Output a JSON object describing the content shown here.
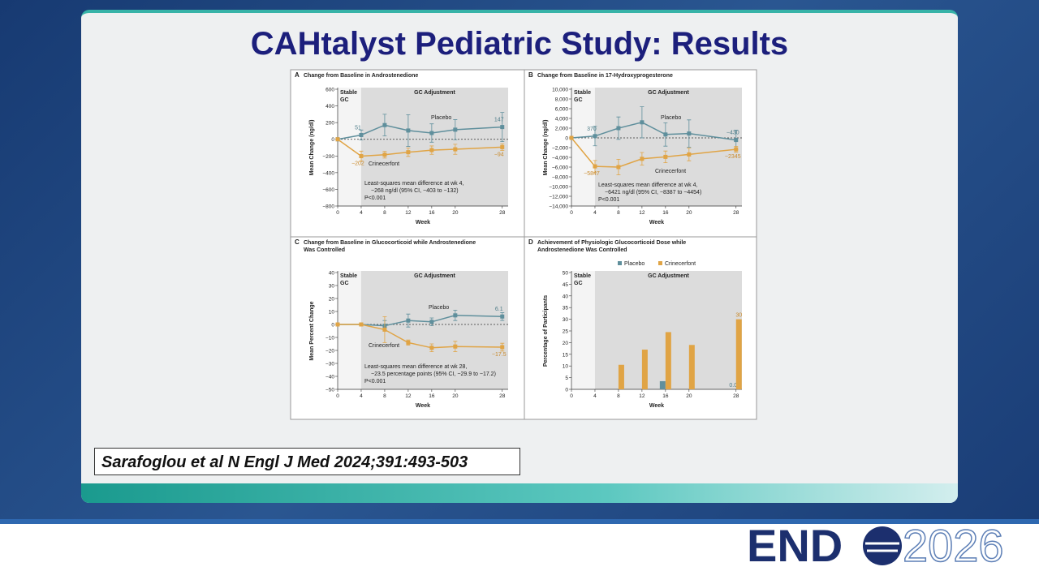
{
  "slide_title": "CAHtalyst Pediatric Study: Results",
  "citation": "Sarafoglou et al N Engl J Med 2024;391:493-503",
  "logo": {
    "left": "END",
    "right": "2026"
  },
  "chart_data": [
    {
      "type": "line",
      "panel": "A",
      "title": [
        "Change from Baseline in Androstenedione"
      ],
      "x_label": "Week",
      "y_label": "Mean Change (ng/dl)",
      "stable_label": [
        "Stable",
        "GC"
      ],
      "adjust_label": "GC Adjustment",
      "note": [
        "Least-squares mean difference at wk 4,",
        "−268 ng/dl (95% CI, −403 to −132)",
        "P<0.001"
      ],
      "x": [
        0,
        4,
        8,
        12,
        16,
        20,
        28
      ],
      "xlim": [
        0,
        29
      ],
      "xticks": [
        0,
        4,
        8,
        12,
        16,
        20,
        28
      ],
      "ylim": [
        -800,
        600
      ],
      "yticks": [
        {
          "value": -800,
          "label": "−800"
        },
        {
          "value": -600,
          "label": "−600"
        },
        {
          "value": -400,
          "label": "−400"
        },
        {
          "value": -200,
          "label": "−200"
        },
        0,
        200,
        400,
        600
      ],
      "series": [
        {
          "name": "Placebo",
          "color": "#5f8f9c",
          "values": [
            0,
            51,
            170,
            105,
            75,
            115,
            147
          ],
          "errors": [
            0,
            60,
            130,
            190,
            110,
            120,
            175
          ],
          "value_labels": [
            null,
            "51",
            null,
            null,
            null,
            null,
            "147"
          ]
        },
        {
          "name": "Crinecerfont",
          "color": "#e0a445",
          "values": [
            0,
            -202,
            -185,
            -155,
            -130,
            -120,
            -94
          ],
          "errors": [
            0,
            60,
            40,
            50,
            50,
            60,
            40
          ],
          "value_labels": [
            null,
            "−202",
            null,
            null,
            null,
            null,
            "−94"
          ]
        }
      ]
    },
    {
      "type": "line",
      "panel": "B",
      "title": [
        "Change from Baseline in 17-Hydroxyprogesterone"
      ],
      "x_label": "Week",
      "y_label": "Mean Change (ng/dl)",
      "stable_label": [
        "Stable",
        "GC"
      ],
      "adjust_label": "GC Adjustment",
      "note": [
        "Least-squares mean difference at wk 4,",
        "−6421 ng/dl (95% CI, −8387 to −4454)",
        "P<0.001"
      ],
      "x": [
        0,
        4,
        8,
        12,
        16,
        20,
        28
      ],
      "xlim": [
        0,
        29
      ],
      "xticks": [
        0,
        4,
        8,
        12,
        16,
        20,
        28
      ],
      "ylim": [
        -14000,
        10000
      ],
      "yticks": [
        {
          "value": -14000,
          "label": "−14,000"
        },
        {
          "value": -12000,
          "label": "−12,000"
        },
        {
          "value": -10000,
          "label": "−10,000"
        },
        {
          "value": -8000,
          "label": "−8,000"
        },
        {
          "value": -6000,
          "label": "−6,000"
        },
        {
          "value": -4000,
          "label": "−4,000"
        },
        {
          "value": -2000,
          "label": "−2,000"
        },
        0,
        {
          "value": 2000,
          "label": "2,000"
        },
        {
          "value": 4000,
          "label": "4,000"
        },
        {
          "value": 6000,
          "label": "6,000"
        },
        {
          "value": 8000,
          "label": "8,000"
        },
        {
          "value": 10000,
          "label": "10,000"
        }
      ],
      "series": [
        {
          "name": "Placebo",
          "color": "#5f8f9c",
          "values": [
            0,
            370,
            2000,
            3200,
            700,
            900,
            -430
          ],
          "errors": [
            0,
            2000,
            2300,
            3200,
            2400,
            2800,
            2000
          ],
          "value_labels": [
            null,
            "370",
            null,
            null,
            null,
            null,
            "−430"
          ]
        },
        {
          "name": "Crinecerfont",
          "color": "#e0a445",
          "values": [
            0,
            -5847,
            -6000,
            -4300,
            -3900,
            -3400,
            -2345
          ],
          "errors": [
            0,
            1200,
            1600,
            1300,
            1200,
            1300,
            600
          ],
          "value_labels": [
            null,
            "−5847",
            null,
            null,
            null,
            null,
            "−2345"
          ]
        }
      ]
    },
    {
      "type": "line",
      "panel": "C",
      "title": [
        "Change from Baseline in Glucocorticoid while Androstenedione",
        "Was Controlled"
      ],
      "x_label": "Week",
      "y_label": "Mean Percent Change",
      "stable_label": [
        "Stable",
        "GC"
      ],
      "adjust_label": "GC Adjustment",
      "note": [
        "Least-squares mean difference at wk 28,",
        "−23.5 percentage points (95% CI, −29.9 to −17.2)",
        "P<0.001"
      ],
      "x": [
        0,
        4,
        8,
        12,
        16,
        20,
        28
      ],
      "xlim": [
        0,
        29
      ],
      "xticks": [
        0,
        4,
        8,
        12,
        16,
        20,
        28
      ],
      "ylim": [
        -50,
        40
      ],
      "yticks": [
        {
          "value": -50,
          "label": "−50"
        },
        {
          "value": -40,
          "label": "−40"
        },
        {
          "value": -30,
          "label": "−30"
        },
        {
          "value": -20,
          "label": "−20"
        },
        {
          "value": -10,
          "label": "−10"
        },
        0,
        10,
        20,
        30,
        40
      ],
      "series": [
        {
          "name": "Placebo",
          "color": "#5f8f9c",
          "values": [
            0,
            0,
            -1,
            3,
            2,
            7,
            6.1
          ],
          "errors": [
            0,
            1,
            4,
            5,
            3,
            4,
            3
          ],
          "value_labels": [
            null,
            null,
            null,
            null,
            null,
            null,
            "6.1"
          ]
        },
        {
          "name": "Crinecerfont",
          "color": "#e0a445",
          "values": [
            0,
            0,
            -4,
            -14,
            -18,
            -17,
            -17.5
          ],
          "errors": [
            0,
            1,
            10,
            2,
            3,
            4,
            3
          ],
          "value_labels": [
            null,
            null,
            null,
            null,
            null,
            null,
            "−17.5"
          ]
        }
      ]
    },
    {
      "type": "bar",
      "panel": "D",
      "title": [
        "Achievement of Physiologic Glucocorticoid Dose while",
        "Androstenedione Was Controlled"
      ],
      "x_label": "Week",
      "y_label": "Percentage of Participants",
      "stable_label": [
        "Stable",
        "GC"
      ],
      "adjust_label": "GC Adjustment",
      "x": [
        8,
        12,
        16,
        20,
        28
      ],
      "xlim": [
        0,
        29
      ],
      "xticks": [
        0,
        4,
        8,
        12,
        16,
        20,
        28
      ],
      "ylim": [
        0,
        50
      ],
      "yticks": [
        0,
        5,
        10,
        15,
        20,
        25,
        30,
        35,
        40,
        45,
        50
      ],
      "series": [
        {
          "name": "Placebo",
          "color": "#5f8f9c",
          "values": [
            0,
            0,
            3.5,
            0,
            0
          ],
          "value_labels": [
            null,
            null,
            null,
            null,
            "0.0"
          ]
        },
        {
          "name": "Crinecerfont",
          "color": "#e0a445",
          "values": [
            10.5,
            17,
            24.5,
            19,
            30
          ],
          "value_labels": [
            null,
            null,
            null,
            null,
            "30"
          ]
        }
      ]
    }
  ]
}
